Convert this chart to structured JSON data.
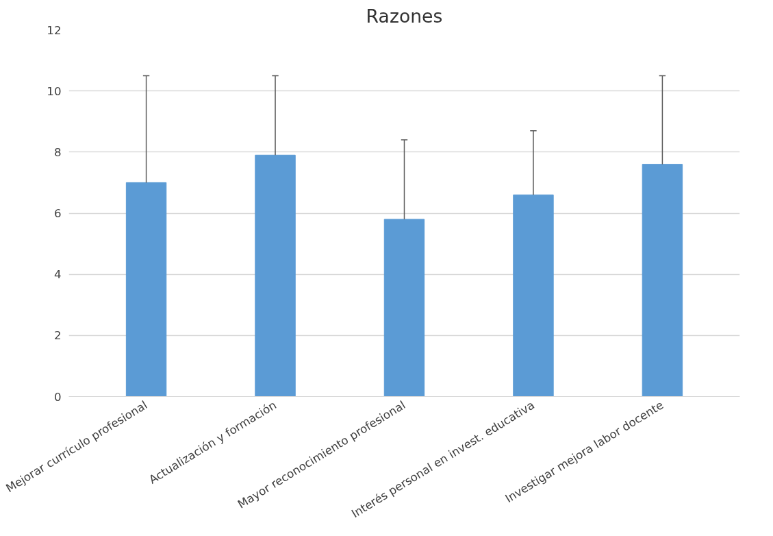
{
  "chart_data": {
    "type": "bar",
    "title": "Razones",
    "categories": [
      "Mejorar currículo profesional",
      "Actualización y formación",
      "Mayor reconocimiento profesional",
      "Interés personal en invest. educativa",
      "Investigar mejora labor docente"
    ],
    "values": [
      7.0,
      7.9,
      5.8,
      6.6,
      7.6
    ],
    "errors": [
      [
        7.0,
        10.5
      ],
      [
        7.9,
        10.5
      ],
      [
        5.8,
        8.4
      ],
      [
        6.6,
        8.7
      ],
      [
        7.6,
        10.5
      ]
    ],
    "color": "#5b9bd5",
    "ylim": [
      0,
      12
    ],
    "yticks": [
      0,
      2,
      4,
      6,
      8,
      10,
      12
    ],
    "grid": "y"
  }
}
